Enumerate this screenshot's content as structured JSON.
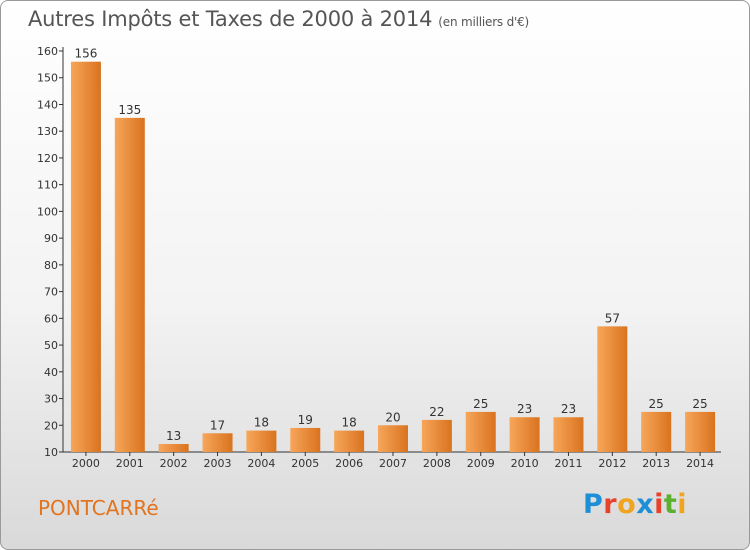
{
  "header": {
    "title": "Autres Impôts et Taxes de 2000 à 2014",
    "unit": "(en milliers d'€)"
  },
  "footer": {
    "commune": "PONTCARRé",
    "logo": "Proxiti"
  },
  "colors": {
    "bar_light": "#f7a65a",
    "bar_dark": "#d9731f",
    "commune_text": "#e2731f",
    "logo_letters": [
      "#1e8fd6",
      "#e8412c",
      "#f0a420",
      "#1e8fd6",
      "#e8412c",
      "#5cb030",
      "#f0a420"
    ]
  },
  "chart_data": {
    "type": "bar",
    "title": "Autres Impôts et Taxes de 2000 à 2014",
    "unit_note": "(en milliers d'€)",
    "categories": [
      "2000",
      "2001",
      "2002",
      "2003",
      "2004",
      "2005",
      "2006",
      "2007",
      "2008",
      "2009",
      "2010",
      "2011",
      "2012",
      "2013",
      "2014"
    ],
    "values": [
      156,
      135,
      13,
      17,
      18,
      19,
      18,
      20,
      22,
      25,
      23,
      23,
      57,
      25,
      25
    ],
    "ylim": [
      10,
      160
    ],
    "yticks": [
      10,
      20,
      30,
      40,
      50,
      60,
      70,
      80,
      90,
      100,
      110,
      120,
      130,
      140,
      150,
      160
    ],
    "grid": false,
    "legend": "none"
  }
}
